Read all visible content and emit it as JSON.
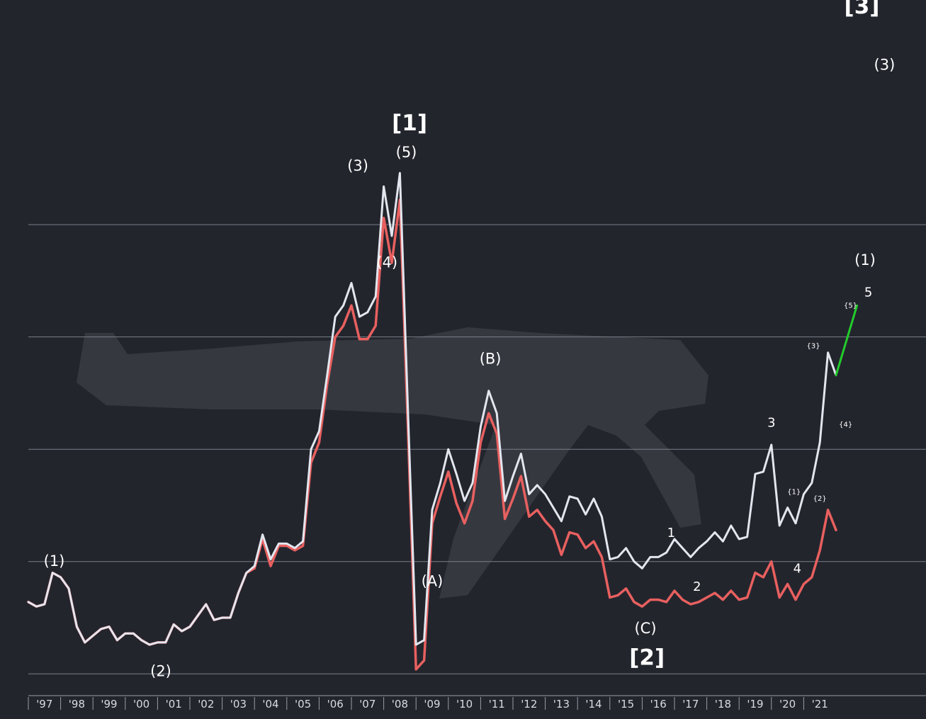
{
  "colors": {
    "background": "#23252d",
    "gridline": "#7b7f88",
    "series_upper": "#e3e6ee",
    "series_lower": "#e8605f",
    "projection": "#22cc2a",
    "minor_label": "#e89a9a",
    "label": "#ffffff"
  },
  "chart_data": {
    "type": "line",
    "title": "",
    "xlabel": "",
    "ylabel": "",
    "xlim": [
      1996.5,
      2022.5
    ],
    "x_ticks": [
      "'97",
      "'98",
      "'99",
      "'00",
      "'01",
      "'02",
      "'03",
      "'04",
      "'05",
      "'06",
      "'07",
      "'08",
      "'09",
      "'10",
      "'11",
      "'12",
      "'13",
      "'14",
      "'15",
      "'16",
      "'17",
      "'18",
      "'19",
      "'20",
      "'21"
    ],
    "grid": "horizontal",
    "series": [
      {
        "role": "upper",
        "points": [
          [
            1996.5,
            0.32
          ],
          [
            1996.75,
            0.3
          ],
          [
            1997.0,
            0.31
          ],
          [
            1997.25,
            0.45
          ],
          [
            1997.5,
            0.43
          ],
          [
            1997.75,
            0.38
          ],
          [
            1998.0,
            0.21
          ],
          [
            1998.25,
            0.14
          ],
          [
            1998.5,
            0.17
          ],
          [
            1998.75,
            0.2
          ],
          [
            1999.0,
            0.21
          ],
          [
            1999.25,
            0.15
          ],
          [
            1999.5,
            0.18
          ],
          [
            1999.75,
            0.18
          ],
          [
            2000.0,
            0.15
          ],
          [
            2000.25,
            0.13
          ],
          [
            2000.5,
            0.14
          ],
          [
            2000.75,
            0.14
          ],
          [
            2001.0,
            0.22
          ],
          [
            2001.25,
            0.19
          ],
          [
            2001.5,
            0.21
          ],
          [
            2001.75,
            0.26
          ],
          [
            2002.0,
            0.31
          ],
          [
            2002.25,
            0.24
          ],
          [
            2002.5,
            0.25
          ],
          [
            2002.75,
            0.25
          ],
          [
            2003.0,
            0.36
          ],
          [
            2003.25,
            0.45
          ],
          [
            2003.5,
            0.48
          ],
          [
            2003.75,
            0.62
          ],
          [
            2004.0,
            0.51
          ],
          [
            2004.25,
            0.58
          ],
          [
            2004.5,
            0.58
          ],
          [
            2004.75,
            0.56
          ],
          [
            2005.0,
            0.59
          ],
          [
            2005.25,
            1.0
          ],
          [
            2005.5,
            1.08
          ],
          [
            2005.75,
            1.33
          ],
          [
            2006.0,
            1.59
          ],
          [
            2006.25,
            1.64
          ],
          [
            2006.5,
            1.74
          ],
          [
            2006.75,
            1.59
          ],
          [
            2007.0,
            1.61
          ],
          [
            2007.25,
            1.68
          ],
          [
            2007.5,
            2.17
          ],
          [
            2007.75,
            1.95
          ],
          [
            2008.0,
            2.23
          ],
          [
            2008.25,
            1.17
          ],
          [
            2008.5,
            0.13
          ],
          [
            2008.75,
            0.15
          ],
          [
            2009.0,
            0.73
          ],
          [
            2009.25,
            0.85
          ],
          [
            2009.5,
            1.0
          ],
          [
            2009.75,
            0.89
          ],
          [
            2010.0,
            0.77
          ],
          [
            2010.25,
            0.85
          ],
          [
            2010.5,
            1.1
          ],
          [
            2010.75,
            1.26
          ],
          [
            2011.0,
            1.16
          ],
          [
            2011.25,
            0.77
          ],
          [
            2011.5,
            0.88
          ],
          [
            2011.75,
            0.98
          ],
          [
            2012.0,
            0.8
          ],
          [
            2012.25,
            0.84
          ],
          [
            2012.5,
            0.8
          ],
          [
            2012.75,
            0.74
          ],
          [
            2013.0,
            0.68
          ],
          [
            2013.25,
            0.79
          ],
          [
            2013.5,
            0.78
          ],
          [
            2013.75,
            0.71
          ],
          [
            2014.0,
            0.78
          ],
          [
            2014.25,
            0.7
          ],
          [
            2014.5,
            0.51
          ],
          [
            2014.75,
            0.52
          ],
          [
            2015.0,
            0.56
          ],
          [
            2015.25,
            0.5
          ],
          [
            2015.5,
            0.47
          ],
          [
            2015.75,
            0.52
          ],
          [
            2016.0,
            0.52
          ],
          [
            2016.25,
            0.54
          ],
          [
            2016.5,
            0.6
          ],
          [
            2016.75,
            0.56
          ],
          [
            2017.0,
            0.52
          ],
          [
            2017.25,
            0.56
          ],
          [
            2017.5,
            0.59
          ],
          [
            2017.75,
            0.63
          ],
          [
            2018.0,
            0.59
          ],
          [
            2018.25,
            0.66
          ],
          [
            2018.5,
            0.6
          ],
          [
            2018.75,
            0.61
          ],
          [
            2019.0,
            0.89
          ],
          [
            2019.25,
            0.9
          ],
          [
            2019.5,
            1.02
          ],
          [
            2019.75,
            0.66
          ],
          [
            2020.0,
            0.74
          ],
          [
            2020.25,
            0.67
          ],
          [
            2020.5,
            0.8
          ],
          [
            2020.75,
            0.85
          ],
          [
            2021.0,
            1.03
          ],
          [
            2021.25,
            1.43
          ],
          [
            2021.5,
            1.33
          ]
        ]
      },
      {
        "role": "lower",
        "points": [
          [
            1996.5,
            0.32
          ],
          [
            1996.75,
            0.3
          ],
          [
            1997.0,
            0.31
          ],
          [
            1997.25,
            0.45
          ],
          [
            1997.5,
            0.43
          ],
          [
            1997.75,
            0.38
          ],
          [
            1998.0,
            0.21
          ],
          [
            1998.25,
            0.14
          ],
          [
            1998.5,
            0.17
          ],
          [
            1998.75,
            0.2
          ],
          [
            1999.0,
            0.21
          ],
          [
            1999.25,
            0.15
          ],
          [
            1999.5,
            0.18
          ],
          [
            1999.75,
            0.18
          ],
          [
            2000.0,
            0.15
          ],
          [
            2000.25,
            0.13
          ],
          [
            2000.5,
            0.14
          ],
          [
            2000.75,
            0.14
          ],
          [
            2001.0,
            0.22
          ],
          [
            2001.25,
            0.19
          ],
          [
            2001.5,
            0.21
          ],
          [
            2001.75,
            0.26
          ],
          [
            2002.0,
            0.31
          ],
          [
            2002.25,
            0.24
          ],
          [
            2002.5,
            0.25
          ],
          [
            2002.75,
            0.25
          ],
          [
            2003.0,
            0.36
          ],
          [
            2003.25,
            0.45
          ],
          [
            2003.5,
            0.47
          ],
          [
            2003.75,
            0.6
          ],
          [
            2004.0,
            0.48
          ],
          [
            2004.25,
            0.57
          ],
          [
            2004.5,
            0.57
          ],
          [
            2004.75,
            0.55
          ],
          [
            2005.0,
            0.57
          ],
          [
            2005.25,
            0.94
          ],
          [
            2005.5,
            1.03
          ],
          [
            2005.75,
            1.29
          ],
          [
            2006.0,
            1.5
          ],
          [
            2006.25,
            1.55
          ],
          [
            2006.5,
            1.64
          ],
          [
            2006.75,
            1.49
          ],
          [
            2007.0,
            1.49
          ],
          [
            2007.25,
            1.55
          ],
          [
            2007.5,
            2.03
          ],
          [
            2007.75,
            1.83
          ],
          [
            2008.0,
            2.11
          ],
          [
            2008.25,
            1.09
          ],
          [
            2008.5,
            0.02
          ],
          [
            2008.75,
            0.06
          ],
          [
            2009.0,
            0.67
          ],
          [
            2009.25,
            0.79
          ],
          [
            2009.5,
            0.9
          ],
          [
            2009.75,
            0.76
          ],
          [
            2010.0,
            0.67
          ],
          [
            2010.25,
            0.77
          ],
          [
            2010.5,
            1.03
          ],
          [
            2010.75,
            1.16
          ],
          [
            2011.0,
            1.07
          ],
          [
            2011.25,
            0.69
          ],
          [
            2011.5,
            0.78
          ],
          [
            2011.75,
            0.88
          ],
          [
            2012.0,
            0.7
          ],
          [
            2012.25,
            0.73
          ],
          [
            2012.5,
            0.68
          ],
          [
            2012.75,
            0.64
          ],
          [
            2013.0,
            0.53
          ],
          [
            2013.25,
            0.63
          ],
          [
            2013.5,
            0.62
          ],
          [
            2013.75,
            0.56
          ],
          [
            2014.0,
            0.59
          ],
          [
            2014.25,
            0.52
          ],
          [
            2014.5,
            0.34
          ],
          [
            2014.75,
            0.35
          ],
          [
            2015.0,
            0.38
          ],
          [
            2015.25,
            0.32
          ],
          [
            2015.5,
            0.3
          ],
          [
            2015.75,
            0.33
          ],
          [
            2016.0,
            0.33
          ],
          [
            2016.25,
            0.32
          ],
          [
            2016.5,
            0.37
          ],
          [
            2016.75,
            0.33
          ],
          [
            2017.0,
            0.31
          ],
          [
            2017.25,
            0.32
          ],
          [
            2017.5,
            0.34
          ],
          [
            2017.75,
            0.36
          ],
          [
            2018.0,
            0.33
          ],
          [
            2018.25,
            0.37
          ],
          [
            2018.5,
            0.33
          ],
          [
            2018.75,
            0.34
          ],
          [
            2019.0,
            0.45
          ],
          [
            2019.25,
            0.43
          ],
          [
            2019.5,
            0.5
          ],
          [
            2019.75,
            0.34
          ],
          [
            2020.0,
            0.4
          ],
          [
            2020.25,
            0.33
          ],
          [
            2020.5,
            0.4
          ],
          [
            2020.75,
            0.43
          ],
          [
            2021.0,
            0.55
          ],
          [
            2021.25,
            0.73
          ],
          [
            2021.5,
            0.64
          ]
        ]
      },
      {
        "role": "projection",
        "points": [
          [
            2021.5,
            1.33
          ],
          [
            2022.15,
            1.64
          ]
        ]
      }
    ],
    "grid_levels": [
      0,
      0.5,
      1.0,
      1.5,
      2.0
    ],
    "ylim": [
      -0.1,
      3.0
    ],
    "annotations": [
      {
        "text": "[3]",
        "x": 2022.3,
        "y": 2.94,
        "size": "major"
      },
      {
        "text": "(3)",
        "x": 2023.0,
        "y": 2.69,
        "size": "medium"
      },
      {
        "text": "[1]",
        "x": 2008.3,
        "y": 2.42,
        "size": "major"
      },
      {
        "text": "(5)",
        "x": 2008.2,
        "y": 2.3,
        "size": "medium"
      },
      {
        "text": "(3)",
        "x": 2006.7,
        "y": 2.24,
        "size": "medium"
      },
      {
        "text": "(4)",
        "x": 2007.6,
        "y": 1.81,
        "size": "medium"
      },
      {
        "text": "(1)",
        "x": 2022.4,
        "y": 1.82,
        "size": "medium"
      },
      {
        "text": "5",
        "x": 2022.5,
        "y": 1.68,
        "size": "small"
      },
      {
        "text": "{5}",
        "x": 2021.95,
        "y": 1.63,
        "size": "minor"
      },
      {
        "text": "{3}",
        "x": 2020.8,
        "y": 1.45,
        "size": "minor"
      },
      {
        "text": "(B)",
        "x": 2010.8,
        "y": 1.38,
        "size": "medium"
      },
      {
        "text": "{4}",
        "x": 2021.8,
        "y": 1.1,
        "size": "minor"
      },
      {
        "text": "3",
        "x": 2019.5,
        "y": 1.1,
        "size": "small"
      },
      {
        "text": "{1}",
        "x": 2020.2,
        "y": 0.8,
        "size": "minor"
      },
      {
        "text": "{2}",
        "x": 2021.0,
        "y": 0.77,
        "size": "minor"
      },
      {
        "text": "1",
        "x": 2016.4,
        "y": 0.61,
        "size": "small"
      },
      {
        "text": "(1)",
        "x": 1997.3,
        "y": 0.48,
        "size": "medium"
      },
      {
        "text": "4",
        "x": 2020.3,
        "y": 0.45,
        "size": "small"
      },
      {
        "text": "(A)",
        "x": 2009.0,
        "y": 0.39,
        "size": "medium"
      },
      {
        "text": "2",
        "x": 2017.2,
        "y": 0.37,
        "size": "small"
      },
      {
        "text": "(C)",
        "x": 2015.6,
        "y": 0.18,
        "size": "medium"
      },
      {
        "text": "[2]",
        "x": 2015.65,
        "y": 0.04,
        "size": "major"
      },
      {
        "text": "(2)",
        "x": 2000.6,
        "y": -0.01,
        "size": "medium"
      }
    ]
  }
}
